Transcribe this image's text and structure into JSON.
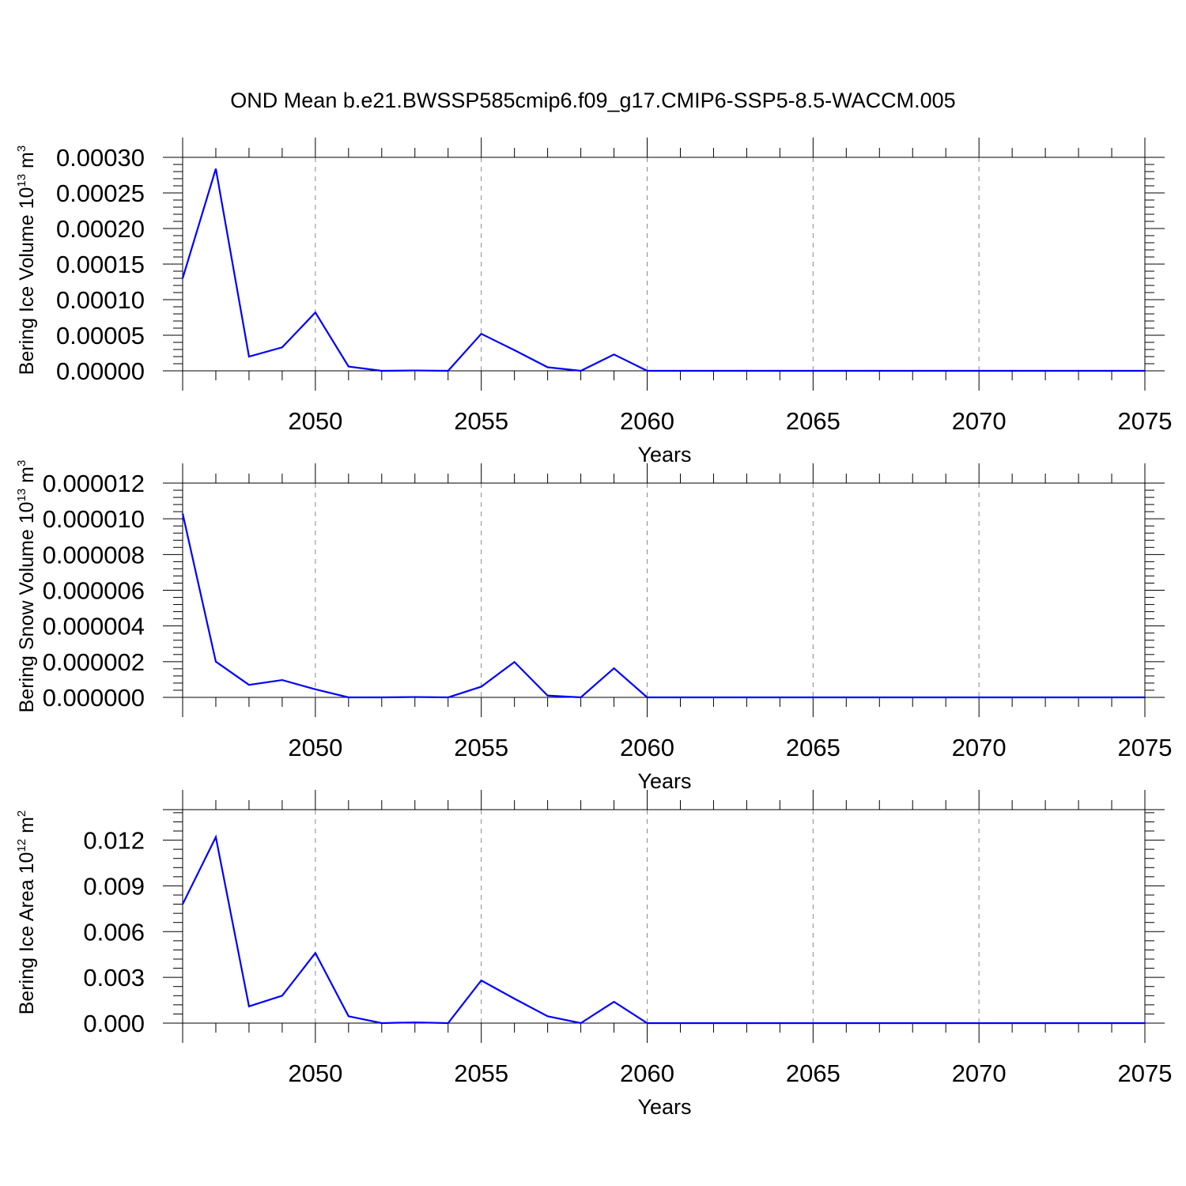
{
  "title": "OND Mean b.e21.BWSSP585cmip6.f09_g17.CMIP6-SSP5-8.5-WACCM.005",
  "series_color": "#0000ff",
  "chart_data": [
    {
      "type": "line",
      "xlabel": "Years",
      "ylabel": "Bering Ice Volume 10",
      "ylabel_exp": "13",
      "ylabel_unit": "m",
      "ylabel_unit_exp": "3",
      "xlim": [
        2046,
        2075
      ],
      "ylim": [
        0,
        0.0003
      ],
      "x_ticks": [
        "2050",
        "2055",
        "2060",
        "2065",
        "2070",
        "2075"
      ],
      "y_ticks": [
        "0.00000",
        "0.00005",
        "0.00010",
        "0.00015",
        "0.00020",
        "0.00025",
        "0.00030"
      ],
      "grid": "x-dashed",
      "x": [
        2046,
        2047,
        2048,
        2049,
        2050,
        2051,
        2052,
        2053,
        2054,
        2055,
        2056,
        2057,
        2058,
        2059,
        2060,
        2061,
        2062,
        2063,
        2064,
        2065,
        2066,
        2067,
        2068,
        2069,
        2070,
        2071,
        2072,
        2073,
        2074,
        2075
      ],
      "values": [
        0.00013,
        0.000284,
        2e-05,
        3.3e-05,
        8.2e-05,
        6e-06,
        0.0,
        5e-07,
        0.0,
        5.2e-05,
        2.9e-05,
        5e-06,
        0.0,
        2.3e-05,
        0.0,
        0,
        0,
        0,
        0,
        0,
        0,
        0,
        0,
        0,
        0,
        0,
        0,
        0,
        0,
        0
      ]
    },
    {
      "type": "line",
      "xlabel": "Years",
      "ylabel": "Bering Snow Volume 10",
      "ylabel_exp": "13",
      "ylabel_unit": "m",
      "ylabel_unit_exp": "3",
      "xlim": [
        2046,
        2075
      ],
      "ylim": [
        0,
        1.2e-05
      ],
      "x_ticks": [
        "2050",
        "2055",
        "2060",
        "2065",
        "2070",
        "2075"
      ],
      "y_ticks": [
        "0.000000",
        "0.000002",
        "0.000004",
        "0.000006",
        "0.000008",
        "0.000010",
        "0.000012"
      ],
      "grid": "x-dashed",
      "x": [
        2046,
        2047,
        2048,
        2049,
        2050,
        2051,
        2052,
        2053,
        2054,
        2055,
        2056,
        2057,
        2058,
        2059,
        2060,
        2061,
        2062,
        2063,
        2064,
        2065,
        2066,
        2067,
        2068,
        2069,
        2070,
        2071,
        2072,
        2073,
        2074,
        2075
      ],
      "values": [
        1.03e-05,
        2e-06,
        7e-07,
        9.7e-07,
        4.5e-07,
        0.0,
        0.0,
        2e-08,
        0.0,
        6e-07,
        1.98e-06,
        1e-07,
        0.0,
        1.63e-06,
        0.0,
        0,
        0,
        0,
        0,
        0,
        0,
        0,
        0,
        0,
        0,
        0,
        0,
        0,
        0,
        0
      ]
    },
    {
      "type": "line",
      "xlabel": "Years",
      "ylabel": "Bering Ice Area 10",
      "ylabel_exp": "12",
      "ylabel_unit": "m",
      "ylabel_unit_exp": "2",
      "xlim": [
        2046,
        2075
      ],
      "ylim": [
        0,
        0.014
      ],
      "x_ticks": [
        "2050",
        "2055",
        "2060",
        "2065",
        "2070",
        "2075"
      ],
      "y_ticks": [
        "0.000",
        "0.003",
        "0.006",
        "0.009",
        "0.012"
      ],
      "grid": "x-dashed",
      "x": [
        2046,
        2047,
        2048,
        2049,
        2050,
        2051,
        2052,
        2053,
        2054,
        2055,
        2056,
        2057,
        2058,
        2059,
        2060,
        2061,
        2062,
        2063,
        2064,
        2065,
        2066,
        2067,
        2068,
        2069,
        2070,
        2071,
        2072,
        2073,
        2074,
        2075
      ],
      "values": [
        0.0078,
        0.0122,
        0.0011,
        0.0018,
        0.0046,
        0.00045,
        0.0,
        5e-05,
        0.0,
        0.0028,
        0.0016,
        0.00045,
        0.0,
        0.0014,
        0.0,
        0,
        0,
        0,
        0,
        0,
        0,
        0,
        0,
        0,
        0,
        0,
        0,
        0,
        0,
        0
      ]
    }
  ]
}
